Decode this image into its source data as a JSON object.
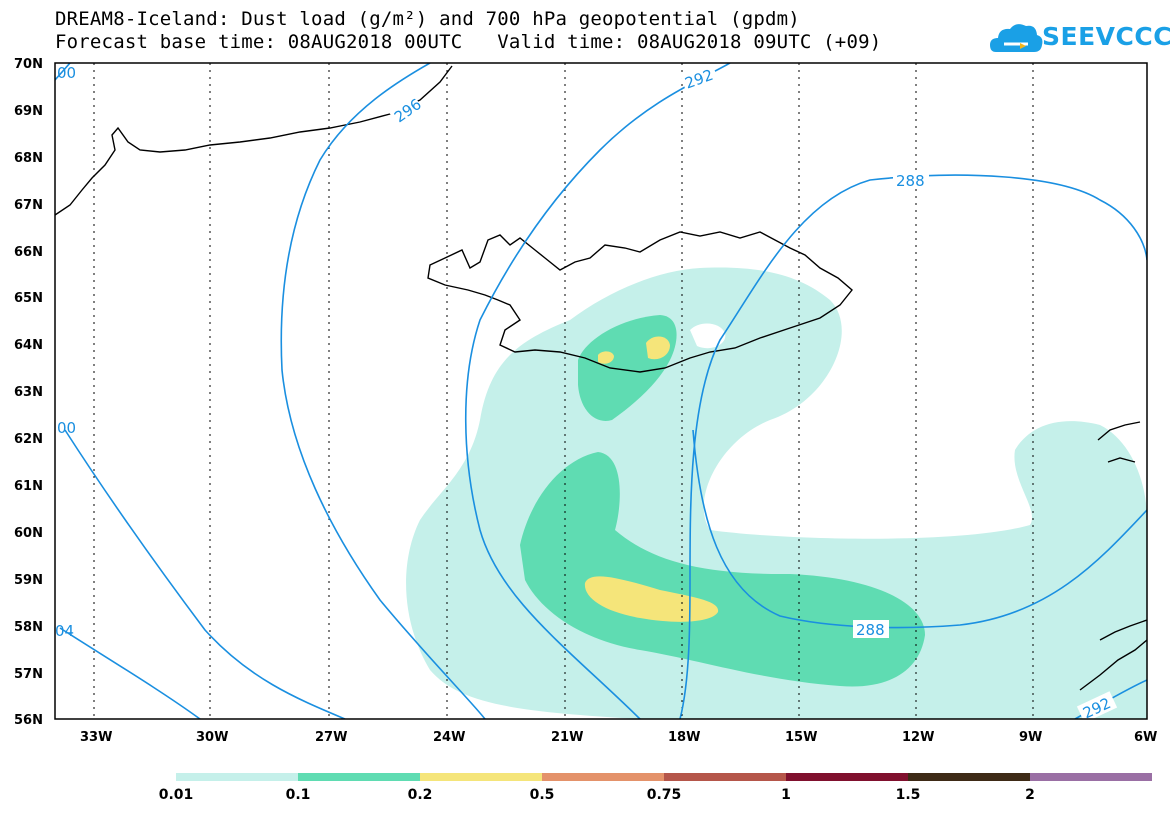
{
  "title": {
    "line1": "DREAM8-Iceland: Dust load (g/m²) and 700 hPa geopotential (gpdm)",
    "line2": "Forecast base time: 08AUG2018 00UTC   Valid time: 08AUG2018 09UTC (+09)"
  },
  "logo": {
    "text": "SEEVCCC",
    "icon": "cloud-icon",
    "color": "#1aa0e6"
  },
  "map": {
    "lat_labels": [
      "70N",
      "69N",
      "68N",
      "67N",
      "66N",
      "65N",
      "64N",
      "63N",
      "62N",
      "61N",
      "60N",
      "59N",
      "58N",
      "57N",
      "56N"
    ],
    "lon_labels": [
      "33W",
      "30W",
      "27W",
      "24W",
      "21W",
      "18W",
      "15W",
      "12W",
      "9W",
      "6W"
    ],
    "contour_labels": {
      "c296": "296",
      "c292_top": "292",
      "c288_top": "288",
      "c288_bottom": "288",
      "c292_bottom": "292",
      "c300_left": "00",
      "c300_top": "00",
      "c304": "04"
    }
  },
  "colorbar": {
    "ticks": [
      "0.01",
      "0.1",
      "0.2",
      "0.5",
      "0.75",
      "1",
      "1.5",
      "2"
    ],
    "colors": [
      "#c5f0ea",
      "#5fdcb2",
      "#f5e57a",
      "#e4926a",
      "#b5564a",
      "#80102e",
      "#3e2a16",
      "#9a6fa4"
    ]
  }
}
